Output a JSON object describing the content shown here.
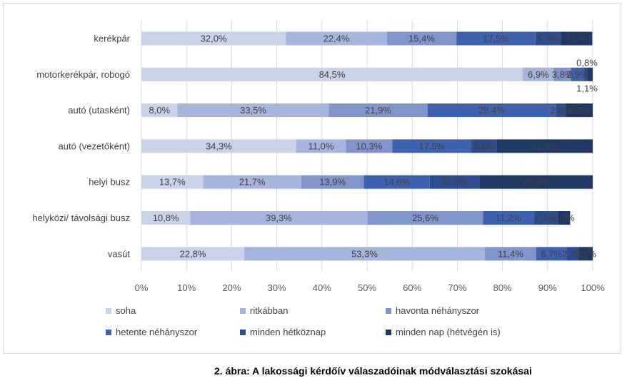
{
  "caption": "2. ábra: A lakossági kérdőív válaszadóinak módválasztási szokásai",
  "chart_data": {
    "type": "bar",
    "orientation": "horizontal",
    "stacked": "percent",
    "title": "",
    "xlabel": "",
    "ylabel": "",
    "xlim": [
      0,
      100
    ],
    "grid": true,
    "legend_position": "bottom",
    "x_ticks": [
      "0%",
      "10%",
      "20%",
      "30%",
      "40%",
      "50%",
      "60%",
      "70%",
      "80%",
      "90%",
      "100%"
    ],
    "categories": [
      "kerékpár",
      "motorkerékpár, robogó",
      "autó (utasként)",
      "autó (vezetőként)",
      "helyi busz",
      "helyközi/ távolsági busz",
      "vasút"
    ],
    "series": [
      {
        "name": "soha",
        "color": "#c9d3ea",
        "values": [
          32.0,
          84.5,
          8.0,
          34.3,
          13.7,
          10.8,
          22.8
        ],
        "labels": [
          "32,0%",
          "84,5%",
          "8,0%",
          "34,3%",
          "13,7%",
          "10,8%",
          "22,8%"
        ]
      },
      {
        "name": "ritkábban",
        "color": "#a6b5de",
        "values": [
          22.4,
          6.9,
          33.5,
          11.0,
          21.7,
          39.3,
          53.3
        ],
        "labels": [
          "22,4%",
          "6,9%",
          "33,5%",
          "11,0%",
          "21,7%",
          "39,3%",
          "53,3%"
        ]
      },
      {
        "name": "havonta néhányszor",
        "color": "#7f95cc",
        "values": [
          15.4,
          3.8,
          21.9,
          10.3,
          13.9,
          25.6,
          11.4
        ],
        "labels": [
          "15,4%",
          "3,8%",
          "21,9%",
          "10,3%",
          "13,9%",
          "25,6%",
          "11,4%"
        ]
      },
      {
        "name": "hetente néhányszor",
        "color": "#3f62b0",
        "values": [
          17.5,
          2.9,
          28.4,
          17.5,
          14.6,
          11.2,
          6.7
        ],
        "labels": [
          "17,5%",
          "2,9%",
          "28,4%",
          "17,5%",
          "14,6%",
          "11,2%",
          "6,7%"
        ]
      },
      {
        "name": "minden hétköznap",
        "color": "#2e4d8f",
        "values": [
          5.6,
          0.8,
          2.2,
          5.6,
          11.0,
          5.4,
          2.7
        ],
        "labels": [
          "5,6%",
          "0,8%",
          "2,2%",
          "5,6%",
          "11,0%",
          "5,4%",
          "2,7%"
        ]
      },
      {
        "name": "minden nap (hétvégén is)",
        "color": "#203864",
        "values": [
          7.0,
          1.1,
          6.0,
          21.3,
          25.1,
          2.7,
          3.1
        ],
        "labels": [
          "7,0%",
          "1,1%",
          "6,0%",
          "21,3%",
          "25,1%",
          "2,7%",
          "3,1%"
        ]
      }
    ]
  }
}
